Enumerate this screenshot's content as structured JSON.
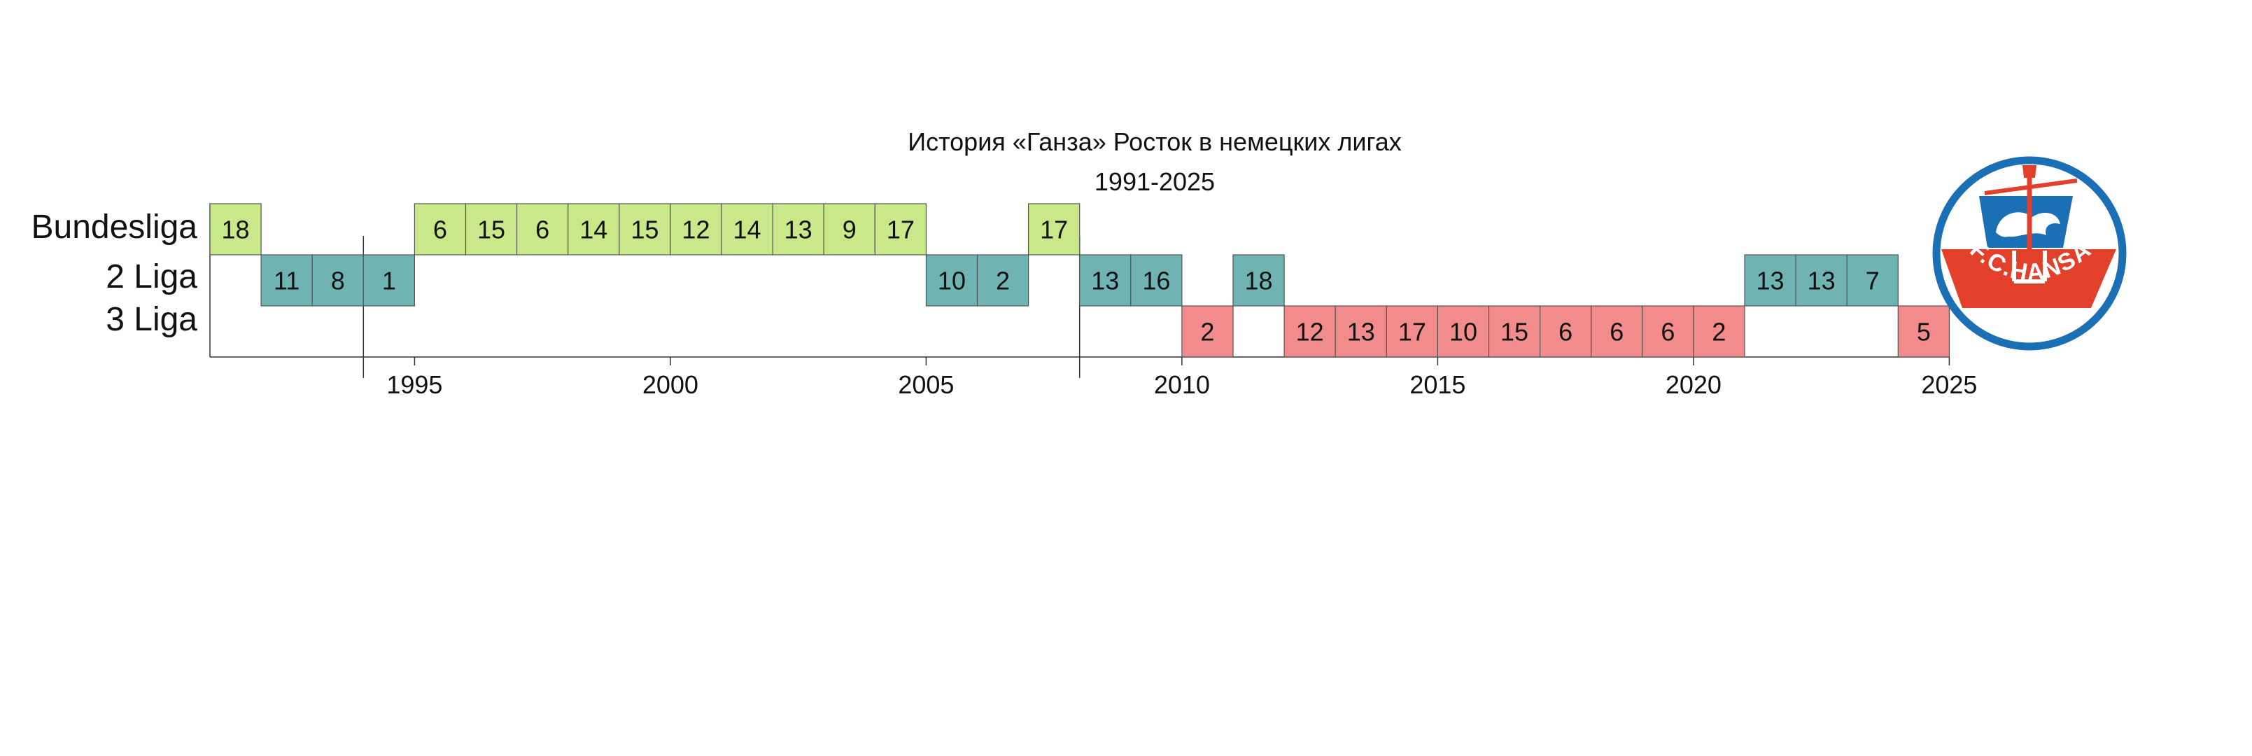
{
  "chart_data": {
    "type": "table",
    "title": "История «Ганза» Росток в немецких лигах",
    "subtitle": "1991-2025",
    "leagues": [
      "Bundesliga",
      "2 Liga",
      "3 Liga"
    ],
    "league_colors": {
      "Bundesliga": "#c8e88a",
      "2 Liga": "#6fb3b3",
      "3 Liga": "#f28b8b"
    },
    "xlim": [
      1991,
      2025
    ],
    "xticks": [
      1995,
      2000,
      2005,
      2010,
      2015,
      2020,
      2025
    ],
    "markers": [
      1994,
      2008
    ],
    "seasons": [
      {
        "year": 1991,
        "league": "Bundesliga",
        "position": "18"
      },
      {
        "year": 1992,
        "league": "2 Liga",
        "position": "11"
      },
      {
        "year": 1993,
        "league": "2 Liga",
        "position": "8"
      },
      {
        "year": 1994,
        "league": "2 Liga",
        "position": "1"
      },
      {
        "year": 1995,
        "league": "Bundesliga",
        "position": "6"
      },
      {
        "year": 1996,
        "league": "Bundesliga",
        "position": "15"
      },
      {
        "year": 1997,
        "league": "Bundesliga",
        "position": "6"
      },
      {
        "year": 1998,
        "league": "Bundesliga",
        "position": "14"
      },
      {
        "year": 1999,
        "league": "Bundesliga",
        "position": "15"
      },
      {
        "year": 2000,
        "league": "Bundesliga",
        "position": "12"
      },
      {
        "year": 2001,
        "league": "Bundesliga",
        "position": "14"
      },
      {
        "year": 2002,
        "league": "Bundesliga",
        "position": "13"
      },
      {
        "year": 2003,
        "league": "Bundesliga",
        "position": "9"
      },
      {
        "year": 2004,
        "league": "Bundesliga",
        "position": "17"
      },
      {
        "year": 2005,
        "league": "2 Liga",
        "position": "10"
      },
      {
        "year": 2006,
        "league": "2 Liga",
        "position": "2"
      },
      {
        "year": 2007,
        "league": "Bundesliga",
        "position": "17"
      },
      {
        "year": 2008,
        "league": "2 Liga",
        "position": "13"
      },
      {
        "year": 2009,
        "league": "2 Liga",
        "position": "16"
      },
      {
        "year": 2010,
        "league": "3 Liga",
        "position": "2"
      },
      {
        "year": 2011,
        "league": "2 Liga",
        "position": "18"
      },
      {
        "year": 2012,
        "league": "3 Liga",
        "position": "12"
      },
      {
        "year": 2013,
        "league": "3 Liga",
        "position": "13"
      },
      {
        "year": 2014,
        "league": "3 Liga",
        "position": "17"
      },
      {
        "year": 2015,
        "league": "3 Liga",
        "position": "10"
      },
      {
        "year": 2016,
        "league": "3 Liga",
        "position": "15"
      },
      {
        "year": 2017,
        "league": "3 Liga",
        "position": "6"
      },
      {
        "year": 2018,
        "league": "3 Liga",
        "position": "6"
      },
      {
        "year": 2019,
        "league": "3 Liga",
        "position": "6"
      },
      {
        "year": 2020,
        "league": "3 Liga",
        "position": "2"
      },
      {
        "year": 2021,
        "league": "2 Liga",
        "position": "13"
      },
      {
        "year": 2022,
        "league": "2 Liga",
        "position": "13"
      },
      {
        "year": 2023,
        "league": "2 Liga",
        "position": "7"
      },
      {
        "year": 2024,
        "league": "3 Liga",
        "position": "5"
      }
    ]
  },
  "logo": {
    "text": "F.C.HANSA",
    "ring_color": "#1a6fb5",
    "accent_color": "#e2402a",
    "icon": "fc-hansa-ship-crest"
  }
}
